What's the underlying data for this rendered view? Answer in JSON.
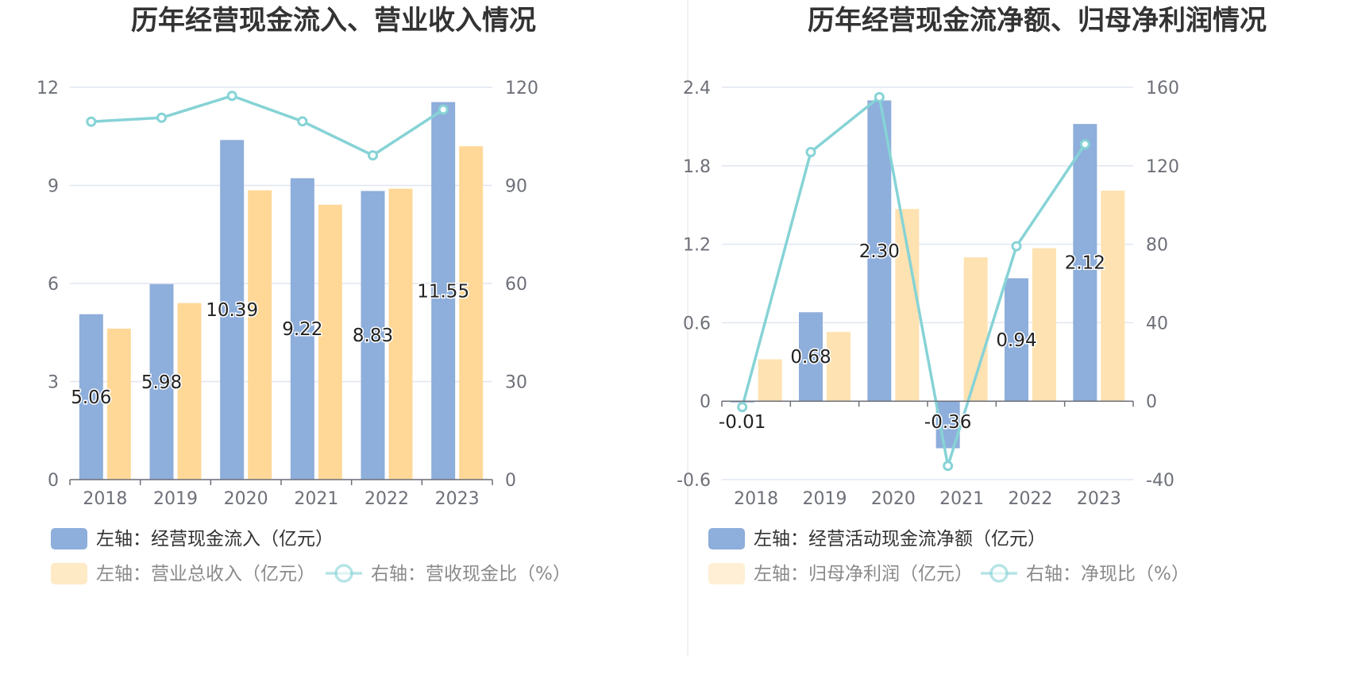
{
  "chart_data": [
    {
      "type": "bar",
      "title": "历年经营现金流入、营业收入情况",
      "categories": [
        "2018",
        "2019",
        "2020",
        "2021",
        "2022",
        "2023"
      ],
      "left_axis": {
        "min": 0,
        "max": 12,
        "ticks": [
          "0",
          "3",
          "6",
          "9",
          "12"
        ]
      },
      "right_axis": {
        "min": 0,
        "max": 120,
        "ticks": [
          "0",
          "30",
          "60",
          "90",
          "120"
        ]
      },
      "series": [
        {
          "name": "左轴：经营现金流入（亿元）",
          "kind": "bar",
          "axis": "left",
          "color": "#8eaedb",
          "values": [
            5.06,
            5.98,
            10.39,
            9.22,
            8.83,
            11.55
          ],
          "labels": [
            "5.06",
            "5.98",
            "10.39",
            "9.22",
            "8.83",
            "11.55"
          ]
        },
        {
          "name": "左轴：营业总收入（亿元）",
          "kind": "bar",
          "axis": "left",
          "color": "#ffd898",
          "values": [
            4.62,
            5.4,
            8.85,
            8.41,
            8.9,
            10.2
          ]
        },
        {
          "name": "右轴：营收现金比（%）",
          "kind": "line",
          "axis": "right",
          "color": "#86d3d6",
          "values": [
            109.5,
            110.7,
            117.4,
            109.6,
            99.2,
            113.2
          ]
        }
      ],
      "grid": true
    },
    {
      "type": "bar",
      "title": "历年经营现金流净额、归母净利润情况",
      "categories": [
        "2018",
        "2019",
        "2020",
        "2021",
        "2022",
        "2023"
      ],
      "left_axis": {
        "min": -0.6,
        "max": 2.4,
        "ticks": [
          "-0.6",
          "0",
          "0.6",
          "1.2",
          "1.8",
          "2.4"
        ]
      },
      "right_axis": {
        "min": -40,
        "max": 160,
        "ticks": [
          "-40",
          "0",
          "40",
          "80",
          "120",
          "160"
        ]
      },
      "series": [
        {
          "name": "左轴：经营活动现金流净额（亿元）",
          "kind": "bar",
          "axis": "left",
          "color": "#8eaedb",
          "values": [
            -0.01,
            0.68,
            2.3,
            -0.36,
            0.94,
            2.12
          ],
          "labels": [
            "-0.01",
            "0.68",
            "2.30",
            "-0.36",
            "0.94",
            "2.12"
          ]
        },
        {
          "name": "左轴：归母净利润（亿元）",
          "kind": "bar",
          "axis": "left",
          "color": "#ffe2b1",
          "values": [
            0.32,
            0.53,
            1.47,
            1.1,
            1.17,
            1.61
          ]
        },
        {
          "name": "右轴：净现比（%）",
          "kind": "line",
          "axis": "right",
          "color": "#86d3d6",
          "values": [
            -3,
            127,
            155,
            -33,
            79,
            131
          ]
        }
      ],
      "grid": true
    }
  ]
}
